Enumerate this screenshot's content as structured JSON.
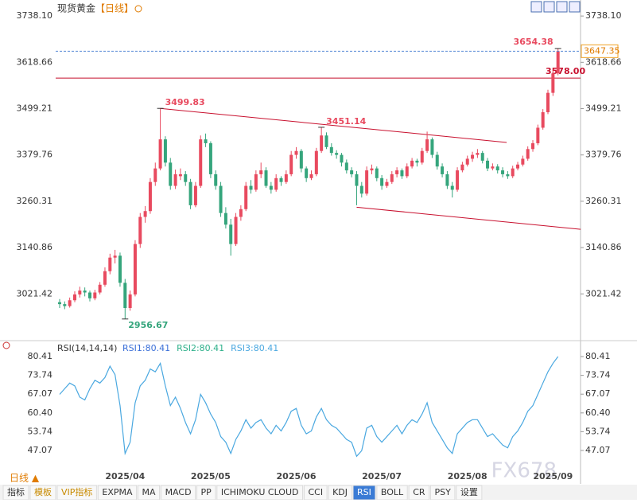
{
  "chart_data": {
    "type": "candlestick",
    "title": "现货黄金",
    "period": "【日线】",
    "up_color": "#e84a5f",
    "down_color": "#35a57c",
    "ylim": [
      2907,
      3763
    ],
    "yticks": [
      {
        "value": 3738.1,
        "label": "3738.10"
      },
      3618.66,
      3499.21,
      3379.76,
      3260.31,
      3140.86,
      3021.42
    ],
    "categories": [
      null,
      null,
      null,
      null,
      null,
      null,
      null,
      null,
      null,
      null,
      null,
      null,
      null,
      "2025/04",
      null,
      null,
      null,
      null,
      null,
      null,
      null,
      null,
      null,
      null,
      null,
      null,
      null,
      null,
      null,
      null,
      "2025/05",
      null,
      null,
      null,
      null,
      null,
      null,
      null,
      null,
      null,
      null,
      null,
      null,
      null,
      null,
      null,
      null,
      "2025/06",
      null,
      null,
      null,
      null,
      null,
      null,
      null,
      null,
      null,
      null,
      null,
      null,
      null,
      null,
      null,
      null,
      "2025/07",
      null,
      null,
      null,
      null,
      null,
      null,
      null,
      null,
      null,
      null,
      null,
      null,
      null,
      null,
      null,
      null,
      "2025/08",
      null,
      null,
      null,
      null,
      null,
      null,
      null,
      null,
      null,
      null,
      null,
      null,
      null,
      null,
      null,
      null,
      "2025/09",
      null
    ],
    "candles": [
      [
        3000,
        3008,
        2985,
        2995
      ],
      [
        2995,
        3002,
        2982,
        2990
      ],
      [
        2990,
        3012,
        2986,
        3005
      ],
      [
        3005,
        3028,
        3000,
        3020
      ],
      [
        3020,
        3040,
        3012,
        3030
      ],
      [
        3030,
        3038,
        3015,
        3025
      ],
      [
        3025,
        3030,
        3002,
        3010
      ],
      [
        3010,
        3032,
        3005,
        3025
      ],
      [
        3025,
        3052,
        3020,
        3045
      ],
      [
        3045,
        3090,
        3040,
        3080
      ],
      [
        3080,
        3125,
        3072,
        3115
      ],
      [
        3115,
        3135,
        3100,
        3120
      ],
      [
        3120,
        3128,
        3040,
        3050
      ],
      [
        3050,
        3060,
        2956.67,
        2985
      ],
      [
        2985,
        3030,
        2978,
        3020
      ],
      [
        3020,
        3160,
        3015,
        3150
      ],
      [
        3150,
        3230,
        3140,
        3220
      ],
      [
        3220,
        3248,
        3205,
        3235
      ],
      [
        3235,
        3320,
        3228,
        3310
      ],
      [
        3310,
        3360,
        3300,
        3345
      ],
      [
        3345,
        3499.83,
        3340,
        3420
      ],
      [
        3420,
        3428,
        3350,
        3360
      ],
      [
        3360,
        3372,
        3290,
        3300
      ],
      [
        3300,
        3342,
        3292,
        3330
      ],
      [
        3325,
        3345,
        3315,
        3330
      ],
      [
        3330,
        3338,
        3300,
        3310
      ],
      [
        3310,
        3318,
        3240,
        3250
      ],
      [
        3250,
        3310,
        3245,
        3300
      ],
      [
        3300,
        3430,
        3295,
        3420
      ],
      [
        3420,
        3435,
        3400,
        3410
      ],
      [
        3410,
        3415,
        3320,
        3330
      ],
      [
        3330,
        3340,
        3290,
        3300
      ],
      [
        3300,
        3310,
        3220,
        3230
      ],
      [
        3230,
        3245,
        3190,
        3200
      ],
      [
        3200,
        3215,
        3120,
        3150
      ],
      [
        3150,
        3230,
        3145,
        3220
      ],
      [
        3220,
        3250,
        3210,
        3240
      ],
      [
        3240,
        3310,
        3235,
        3300
      ],
      [
        3300,
        3315,
        3280,
        3290
      ],
      [
        3290,
        3340,
        3285,
        3330
      ],
      [
        3330,
        3360,
        3320,
        3340
      ],
      [
        3340,
        3348,
        3295,
        3300
      ],
      [
        3300,
        3310,
        3280,
        3290
      ],
      [
        3290,
        3330,
        3285,
        3320
      ],
      [
        3320,
        3325,
        3300,
        3310
      ],
      [
        3310,
        3340,
        3305,
        3330
      ],
      [
        3330,
        3390,
        3325,
        3380
      ],
      [
        3380,
        3400,
        3370,
        3390
      ],
      [
        3390,
        3395,
        3335,
        3345
      ],
      [
        3345,
        3350,
        3310,
        3320
      ],
      [
        3320,
        3340,
        3315,
        3330
      ],
      [
        3330,
        3398,
        3325,
        3390
      ],
      [
        3390,
        3451.14,
        3385,
        3430
      ],
      [
        3430,
        3438,
        3395,
        3400
      ],
      [
        3400,
        3410,
        3378,
        3385
      ],
      [
        3385,
        3392,
        3370,
        3380
      ],
      [
        3380,
        3385,
        3350,
        3360
      ],
      [
        3360,
        3368,
        3332,
        3340
      ],
      [
        3340,
        3348,
        3322,
        3330
      ],
      [
        3330,
        3338,
        3250,
        3300
      ],
      [
        3300,
        3310,
        3270,
        3280
      ],
      [
        3280,
        3350,
        3275,
        3340
      ],
      [
        3340,
        3355,
        3330,
        3345
      ],
      [
        3345,
        3350,
        3312,
        3320
      ],
      [
        3320,
        3328,
        3290,
        3300
      ],
      [
        3300,
        3318,
        3295,
        3310
      ],
      [
        3310,
        3338,
        3305,
        3330
      ],
      [
        3330,
        3348,
        3322,
        3340
      ],
      [
        3340,
        3345,
        3318,
        3325
      ],
      [
        3325,
        3358,
        3320,
        3350
      ],
      [
        3350,
        3372,
        3345,
        3365
      ],
      [
        3365,
        3370,
        3350,
        3360
      ],
      [
        3360,
        3398,
        3355,
        3390
      ],
      [
        3390,
        3440,
        3385,
        3420
      ],
      [
        3420,
        3425,
        3372,
        3380
      ],
      [
        3380,
        3388,
        3342,
        3350
      ],
      [
        3350,
        3358,
        3322,
        3330
      ],
      [
        3330,
        3338,
        3292,
        3300
      ],
      [
        3300,
        3310,
        3270,
        3290
      ],
      [
        3290,
        3348,
        3285,
        3340
      ],
      [
        3340,
        3362,
        3335,
        3355
      ],
      [
        3355,
        3378,
        3350,
        3370
      ],
      [
        3370,
        3388,
        3362,
        3380
      ],
      [
        3380,
        3395,
        3372,
        3385
      ],
      [
        3385,
        3390,
        3358,
        3365
      ],
      [
        3365,
        3372,
        3338,
        3345
      ],
      [
        3345,
        3358,
        3340,
        3350
      ],
      [
        3350,
        3356,
        3332,
        3340
      ],
      [
        3340,
        3348,
        3322,
        3330
      ],
      [
        3330,
        3338,
        3318,
        3325
      ],
      [
        3325,
        3352,
        3320,
        3345
      ],
      [
        3345,
        3362,
        3340,
        3355
      ],
      [
        3355,
        3378,
        3350,
        3370
      ],
      [
        3370,
        3402,
        3365,
        3395
      ],
      [
        3395,
        3418,
        3388,
        3410
      ],
      [
        3410,
        3458,
        3405,
        3450
      ],
      [
        3450,
        3498,
        3445,
        3490
      ],
      [
        3490,
        3548,
        3485,
        3540
      ],
      [
        3540,
        3598,
        3532,
        3590
      ],
      [
        3590,
        3654.38,
        3585,
        3647.35
      ]
    ],
    "hline": {
      "value": 3578,
      "label": "3578.00",
      "color": "#c8102e"
    },
    "trendlines": [
      {
        "x": [
          20,
          88.8
        ],
        "y": [
          3499.83,
          3412
        ]
      },
      {
        "x": [
          59,
          103.5
        ],
        "y": [
          3245,
          3188
        ]
      }
    ],
    "trend_color": "#c8102e",
    "rsi": {
      "header": "RSI(14,14,14)",
      "legend": [
        {
          "name": "RSI1:80.41",
          "color": "#3a6fd8"
        },
        {
          "name": "RSI2:80.41",
          "color": "#2eb08a"
        },
        {
          "name": "RSI3:80.41",
          "color": "#4aa8e0"
        }
      ],
      "ylim": [
        39.16,
        83.52
      ],
      "yticks": [
        80.41,
        73.74,
        67.07,
        {
          "value": 60.4,
          "label": "60.40"
        },
        53.74,
        47.07
      ],
      "values": [
        67,
        69,
        71,
        70,
        66,
        65,
        69,
        72,
        71,
        73,
        77,
        74,
        63,
        46,
        50,
        64,
        70,
        72,
        76,
        75,
        78,
        70,
        63,
        66,
        62,
        57,
        53,
        58,
        67,
        64,
        60,
        57,
        52,
        50,
        46,
        51,
        54,
        58,
        55,
        57,
        58,
        55,
        53,
        56,
        54,
        57,
        61,
        62,
        56,
        53,
        54,
        59,
        62,
        58,
        56,
        55,
        53,
        51,
        50,
        45,
        47,
        55,
        56,
        52,
        50,
        52,
        54,
        56,
        53,
        56,
        58,
        57,
        60,
        64,
        57,
        54,
        51,
        48,
        46,
        53,
        55,
        57,
        58,
        58,
        55,
        52,
        53,
        51,
        49,
        48,
        52,
        54,
        57,
        61,
        63,
        67,
        71,
        75,
        78,
        80.41
      ]
    },
    "period_button": "日线 ▲",
    "toolbar": [
      "指标",
      "模板",
      "VIP指标",
      "EXPMA",
      "MA",
      "MACD",
      "PP",
      "ICHIMOKU CLOUD",
      "CCI",
      "KDJ",
      "RSI",
      "BOLL",
      "CR",
      "PSY",
      "设置"
    ],
    "active_tool": 10,
    "watermark": "FX678"
  }
}
